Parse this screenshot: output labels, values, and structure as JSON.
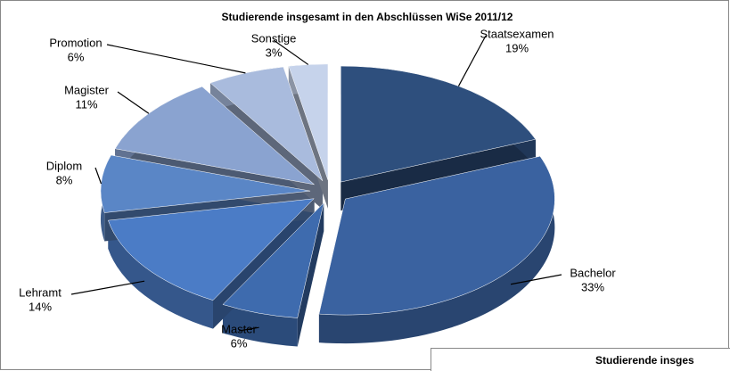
{
  "chart_data": {
    "type": "pie",
    "title": "Studierende insgesamt in den Abschlüssen WiSe 2011/12",
    "categories": [
      "Staatsexamen",
      "Bachelor",
      "Master",
      "Lehramt",
      "Diplom",
      "Magister",
      "Promotion",
      "Sonstige"
    ],
    "values": [
      19,
      33,
      6,
      14,
      8,
      11,
      6,
      3
    ],
    "value_labels": [
      "19%",
      "33%",
      "6%",
      "14%",
      "8%",
      "11%",
      "6%",
      "3%"
    ],
    "colors": [
      "#2e4f7d",
      "#3a62a0",
      "#3e6bae",
      "#4b7cc6",
      "#5a86c6",
      "#8aa3d0",
      "#a9bbdd",
      "#c6d3eb"
    ],
    "annotation": "Studierende insges"
  }
}
